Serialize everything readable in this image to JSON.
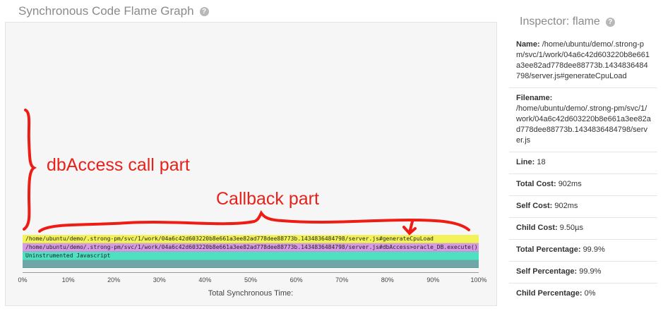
{
  "header": {
    "title": "Synchronous Code Flame Graph"
  },
  "flamegraph": {
    "frames": [
      {
        "label": "/home/ubuntu/demo/.strong-pm/svc/1/work/04a6c42d603220b8e661a3ee82ad778dee88773b.1434836484798/server.js#generateCpuLoad",
        "color": "#f2f25a"
      },
      {
        "label": "/home/ubuntu/demo/.strong-pm/svc/1/work/04a6c42d603220b8e661a3ee82ad778dee88773b.1434836484798/server.js#dbAccess>oracle_DB.execute() fn arg",
        "color": "#d79be6"
      },
      {
        "label": "Uninstrumented Javascript",
        "color": "#4fe0c1"
      },
      {
        "label": "",
        "color": "#6fa7a9"
      }
    ],
    "axis_ticks": [
      "0%",
      "10%",
      "20%",
      "30%",
      "40%",
      "50%",
      "60%",
      "70%",
      "80%",
      "90%",
      "100%"
    ],
    "axis_title": "Total Synchronous Time:"
  },
  "annotations": {
    "db_access": "dbAccess call part",
    "callback": "Callback part"
  },
  "inspector": {
    "title": "Inspector: flame",
    "rows": [
      {
        "key": "Name:",
        "value": "/home/ubuntu/demo/.strong-pm/svc/1/work/04a6c42d603220b8e661a3ee82ad778dee88773b.1434836484798/server.js#generateCpuLoad"
      },
      {
        "key": "Filename:",
        "value": "/home/ubuntu/demo/.strong-pm/svc/1/work/04a6c42d603220b8e661a3ee82ad778dee88773b.1434836484798/server.js"
      },
      {
        "key": "Line:",
        "value": "18"
      },
      {
        "key": "Total Cost:",
        "value": "902ms"
      },
      {
        "key": "Self Cost:",
        "value": "902ms"
      },
      {
        "key": "Child Cost:",
        "value": "9.50µs"
      },
      {
        "key": "Total Percentage:",
        "value": "99.9%"
      },
      {
        "key": "Self Percentage:",
        "value": "99.9%"
      },
      {
        "key": "Child Percentage:",
        "value": "0%"
      }
    ]
  }
}
